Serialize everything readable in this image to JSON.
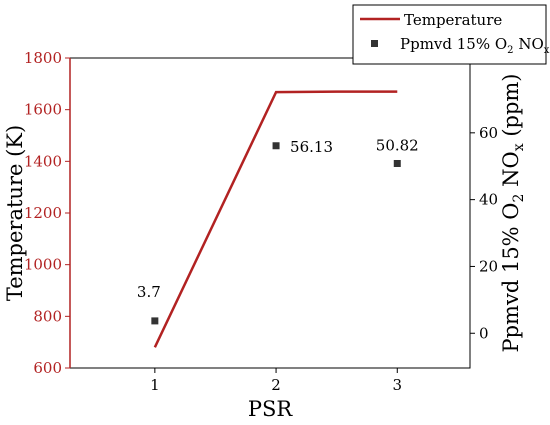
{
  "chart_data": {
    "type": "line+scatter",
    "xlabel": "PSR",
    "ylabel_left": "Temperature (K)",
    "ylabel_right_parts": [
      "Ppmvd 15% O",
      "2",
      " NO",
      "x",
      " (ppm)"
    ],
    "x_ticks": [
      1,
      2,
      3
    ],
    "xlim": [
      0.3,
      3.6
    ],
    "y_left_ticks": [
      600,
      800,
      1000,
      1200,
      1400,
      1600,
      1800
    ],
    "y_left_lim": [
      600,
      1800
    ],
    "y_right_ticks": [
      0,
      20,
      40,
      60
    ],
    "y_right_lim": [
      -10.4,
      82.4
    ],
    "legend_position": "top-right",
    "series": [
      {
        "name": "Temperature",
        "type": "line",
        "axis": "left",
        "color": "#b22222",
        "x": [
          1,
          2,
          2.5,
          3
        ],
        "y": [
          680,
          1668,
          1670,
          1670
        ]
      },
      {
        "name_parts": [
          "Ppmvd 15% O",
          "2",
          " NO",
          "x"
        ],
        "type": "scatter",
        "axis": "right",
        "color": "#333333",
        "x": [
          1,
          2,
          3
        ],
        "y": [
          3.7,
          56.13,
          50.82
        ],
        "labels": [
          "3.7",
          "56.13",
          "50.82"
        ]
      }
    ]
  }
}
